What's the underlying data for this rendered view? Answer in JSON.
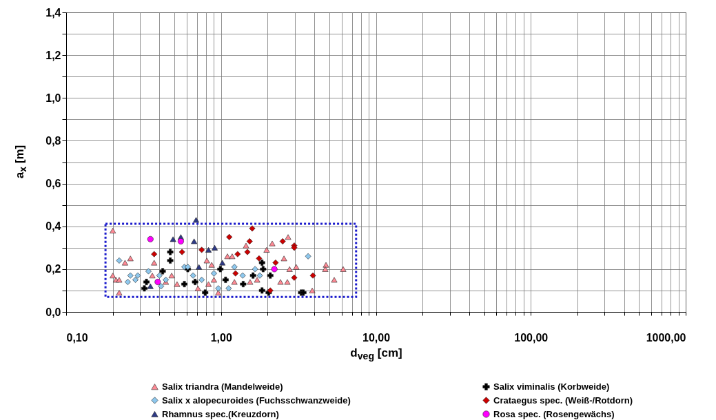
{
  "chart_data": {
    "type": "scatter",
    "xlabel": "d$_{veg}$ [cm]",
    "ylabel": "a$_{x}$ [m]",
    "log": "x",
    "grid": true,
    "legend": "bottom",
    "xlim": [
      0.1,
      1000
    ],
    "ylim": [
      0,
      1.4
    ],
    "xticks": [
      {
        "value": 0.1,
        "label": "0,10"
      },
      {
        "value": 0.2,
        "label": null
      },
      {
        "value": 0.3,
        "label": null
      },
      {
        "value": 0.4,
        "label": null
      },
      {
        "value": 0.5,
        "label": null
      },
      {
        "value": 0.6,
        "label": null
      },
      {
        "value": 0.7,
        "label": null
      },
      {
        "value": 0.8,
        "label": null
      },
      {
        "value": 0.9,
        "label": null
      },
      {
        "value": 1,
        "label": "1,00"
      },
      {
        "value": 2,
        "label": null
      },
      {
        "value": 3,
        "label": null
      },
      {
        "value": 4,
        "label": null
      },
      {
        "value": 5,
        "label": null
      },
      {
        "value": 6,
        "label": null
      },
      {
        "value": 7,
        "label": null
      },
      {
        "value": 8,
        "label": null
      },
      {
        "value": 9,
        "label": null
      },
      {
        "value": 10,
        "label": "10,00"
      },
      {
        "value": 20,
        "label": null
      },
      {
        "value": 30,
        "label": null
      },
      {
        "value": 40,
        "label": null
      },
      {
        "value": 50,
        "label": null
      },
      {
        "value": 60,
        "label": null
      },
      {
        "value": 70,
        "label": null
      },
      {
        "value": 80,
        "label": null
      },
      {
        "value": 90,
        "label": null
      },
      {
        "value": 100,
        "label": "100,00"
      },
      {
        "value": 200,
        "label": null
      },
      {
        "value": 300,
        "label": null
      },
      {
        "value": 400,
        "label": null
      },
      {
        "value": 500,
        "label": null
      },
      {
        "value": 600,
        "label": null
      },
      {
        "value": 700,
        "label": null
      },
      {
        "value": 800,
        "label": null
      },
      {
        "value": 900,
        "label": null
      },
      {
        "value": 1000,
        "label": "1000,00"
      }
    ],
    "yticks": [
      {
        "value": 0,
        "label": "0,0"
      },
      {
        "value": 0.1,
        "label": null
      },
      {
        "value": 0.2,
        "label": "0,2"
      },
      {
        "value": 0.3,
        "label": null
      },
      {
        "value": 0.4,
        "label": "0,4"
      },
      {
        "value": 0.5,
        "label": null
      },
      {
        "value": 0.6,
        "label": "0,6"
      },
      {
        "value": 0.7,
        "label": null
      },
      {
        "value": 0.8,
        "label": "0,8"
      },
      {
        "value": 0.9,
        "label": null
      },
      {
        "value": 1.0,
        "label": "1,0"
      },
      {
        "value": 1.1,
        "label": null
      },
      {
        "value": 1.2,
        "label": "1,2"
      },
      {
        "value": 1.3,
        "label": null
      },
      {
        "value": 1.4,
        "label": "1,4"
      }
    ],
    "series": [
      {
        "name": "Salix triandra (Mandelweide)",
        "marker": "triangle",
        "color": "#ff8a95",
        "x": [
          0.2,
          0.24,
          0.26,
          0.2,
          0.21,
          0.22,
          0.22,
          0.37,
          0.36,
          0.81,
          0.87,
          1.1,
          0.83,
          0.96,
          0.71,
          0.52,
          2.71,
          2.14,
          1.97,
          1.45,
          2.55,
          4.76,
          4.71,
          6.15,
          5.38,
          3.88,
          2.42,
          2.68,
          3.06,
          2.77,
          1.54,
          1.71,
          1.18,
          0.48,
          1.22,
          0.44,
          0.9
        ],
        "values": [
          0.38,
          0.23,
          0.25,
          0.17,
          0.15,
          0.15,
          0.09,
          0.23,
          0.17,
          0.24,
          0.22,
          0.26,
          0.13,
          0.09,
          0.11,
          0.13,
          0.35,
          0.32,
          0.29,
          0.31,
          0.25,
          0.22,
          0.2,
          0.2,
          0.15,
          0.1,
          0.14,
          0.14,
          0.21,
          0.2,
          0.14,
          0.15,
          0.26,
          0.17,
          0.14,
          0.14,
          0.15
        ]
      },
      {
        "name": "Salix viminalis (Korbweide)",
        "marker": "cross",
        "color": "#000000",
        "x": [
          0.47,
          0.47,
          0.33,
          0.32,
          0.42,
          0.58,
          0.68,
          0.79,
          0.99,
          1.07,
          0.61,
          1.84,
          1.87,
          2.08,
          1.39,
          1.84,
          2.03,
          3.29,
          3.4,
          1.61
        ],
        "values": [
          0.28,
          0.24,
          0.14,
          0.11,
          0.19,
          0.13,
          0.14,
          0.09,
          0.2,
          0.15,
          0.2,
          0.23,
          0.2,
          0.17,
          0.13,
          0.1,
          0.09,
          0.09,
          0.09,
          0.17
        ]
      },
      {
        "name": "Salix x alopecuroides (Fuchsschwanzweide)",
        "marker": "diamond",
        "color": "#8ec8ee",
        "x": [
          0.22,
          0.26,
          0.28,
          0.29,
          0.34,
          0.4,
          0.44,
          0.58,
          0.61,
          0.66,
          0.75,
          0.9,
          0.96,
          1.12,
          0.41,
          0.25,
          3.65,
          1.22,
          1.66,
          1.78,
          1.38
        ],
        "values": [
          0.24,
          0.17,
          0.15,
          0.17,
          0.19,
          0.17,
          0.15,
          0.21,
          0.21,
          0.17,
          0.15,
          0.18,
          0.11,
          0.11,
          0.12,
          0.14,
          0.26,
          0.21,
          0.2,
          0.17,
          0.17
        ]
      },
      {
        "name": "Crataegus spec.  (Weiß-/Rotdorn)",
        "marker": "diamond",
        "color": "#cc0000",
        "x": [
          1.13,
          0.75,
          0.56,
          0.37,
          1.59,
          1.53,
          2.5,
          2.97,
          2.97,
          1.28,
          1.48,
          1.76,
          2.25,
          3.92,
          2.97,
          2.08,
          1.24
        ],
        "values": [
          0.35,
          0.29,
          0.28,
          0.27,
          0.39,
          0.33,
          0.33,
          0.31,
          0.3,
          0.27,
          0.28,
          0.25,
          0.23,
          0.17,
          0.16,
          0.1,
          0.18
        ]
      },
      {
        "name": "Rhamnus spec.(Kreuzdorn)",
        "marker": "triangle",
        "color": "#2e3a87",
        "x": [
          0.69,
          0.49,
          0.55,
          0.67,
          0.83,
          0.91,
          0.72,
          1.02,
          0.35
        ],
        "values": [
          0.43,
          0.34,
          0.35,
          0.33,
          0.29,
          0.3,
          0.21,
          0.23,
          0.12
        ]
      },
      {
        "name": "Rosa spec. (Rosengewächs)",
        "marker": "circle",
        "color": "#ff00ff",
        "x": [
          0.35,
          0.55,
          0.39,
          2.21
        ],
        "values": [
          0.34,
          0.33,
          0.14,
          0.2
        ]
      }
    ]
  }
}
